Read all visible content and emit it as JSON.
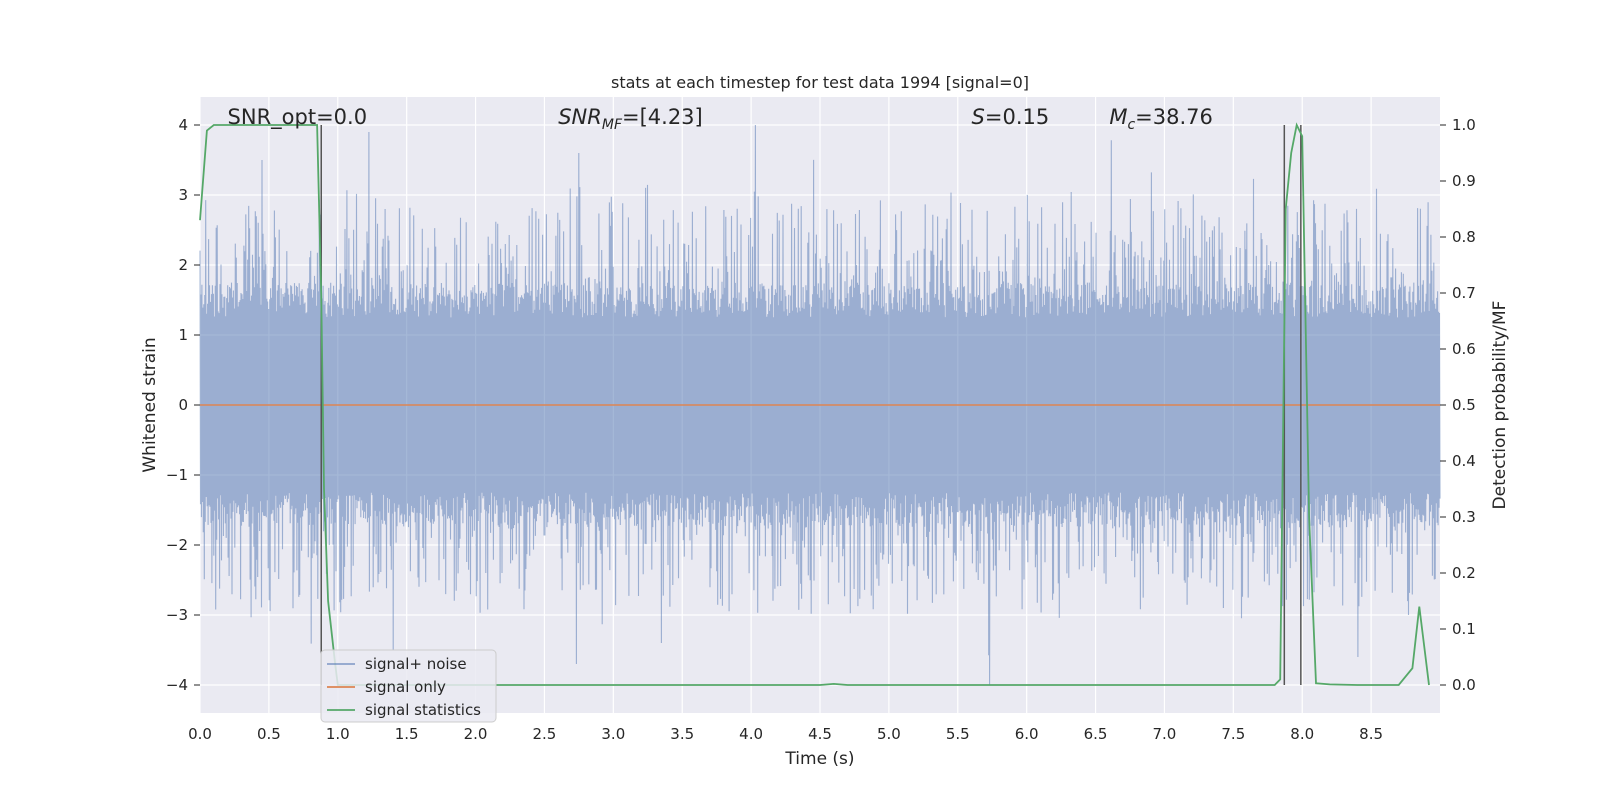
{
  "chart_data": {
    "type": "line",
    "title": "stats at each timestep for test data 1994 [signal=0]",
    "xlabel": "Time (s)",
    "ylabel": "Whitened strain",
    "y2label": "Detection probability/MF",
    "xlim": [
      0.0,
      9.0
    ],
    "ylim": [
      -4.4,
      4.4
    ],
    "y2lim": [
      -0.05,
      1.05
    ],
    "x_ticks": [
      0.0,
      0.5,
      1.0,
      1.5,
      2.0,
      2.5,
      3.0,
      3.5,
      4.0,
      4.5,
      5.0,
      5.5,
      6.0,
      6.5,
      7.0,
      7.5,
      8.0,
      8.5
    ],
    "x_tick_labels": [
      "0.0",
      "0.5",
      "1.0",
      "1.5",
      "2.0",
      "2.5",
      "3.0",
      "3.5",
      "4.0",
      "4.5",
      "5.0",
      "5.5",
      "6.0",
      "6.5",
      "7.0",
      "7.5",
      "8.0",
      "8.5"
    ],
    "y_ticks": [
      -4,
      -3,
      -2,
      -1,
      0,
      1,
      2,
      3,
      4
    ],
    "y_tick_labels": [
      "−4",
      "−3",
      "−2",
      "−1",
      "0",
      "1",
      "2",
      "3",
      "4"
    ],
    "y2_ticks": [
      0.0,
      0.1,
      0.2,
      0.3,
      0.4,
      0.5,
      0.6,
      0.7,
      0.8,
      0.9,
      1.0
    ],
    "y2_tick_labels": [
      "0.0",
      "0.1",
      "0.2",
      "0.3",
      "0.4",
      "0.5",
      "0.6",
      "0.7",
      "0.8",
      "0.9",
      "1.0"
    ],
    "grid": true,
    "legend_position": "lower-left",
    "annotations": [
      {
        "label": "SNR_opt=0.0",
        "x": 0.2
      },
      {
        "label": "SNR_MF=[4.23]",
        "x": 2.6
      },
      {
        "label": "S=0.15",
        "x": 5.6
      },
      {
        "label": "M_c=38.76",
        "x": 6.6
      }
    ],
    "colors": {
      "plot_bg": "#eaeaf2",
      "grid": "#ffffff",
      "signal_noise": "#4c72b0",
      "signal_only": "#dd8452",
      "signal_statistics": "#55a868",
      "vlines": "#555555"
    },
    "series": [
      {
        "name": "signal+ noise",
        "axis": "left",
        "style": "dense noise trace",
        "envelope_core": [
          -1.6,
          1.6
        ],
        "peaks": [
          {
            "x": 0.45,
            "y": 3.5
          },
          {
            "x": 1.23,
            "y": 3.9
          },
          {
            "x": 2.75,
            "y": 3.6
          },
          {
            "x": 4.03,
            "y": 4.0
          },
          {
            "x": 1.4,
            "y": -3.5
          },
          {
            "x": 2.73,
            "y": -3.7
          },
          {
            "x": 3.35,
            "y": -3.4
          },
          {
            "x": 5.73,
            "y": -4.0
          },
          {
            "x": 8.4,
            "y": -3.6
          }
        ]
      },
      {
        "name": "signal only",
        "axis": "left",
        "x": [
          0.0,
          9.0
        ],
        "y": [
          0.0,
          0.0
        ]
      },
      {
        "name": "signal statistics",
        "axis": "right",
        "x": [
          0.0,
          0.05,
          0.1,
          0.2,
          0.5,
          0.85,
          0.88,
          0.9,
          0.93,
          0.98,
          1.0,
          4.5,
          4.6,
          4.7,
          7.8,
          7.84,
          7.88,
          7.92,
          7.96,
          8.0,
          8.05,
          8.1,
          8.2,
          8.4,
          8.7,
          8.8,
          8.85,
          8.92
        ],
        "y": [
          0.83,
          0.99,
          1.0,
          1.0,
          1.0,
          1.0,
          0.7,
          0.35,
          0.15,
          0.04,
          0.0,
          0.0,
          0.002,
          0.0,
          0.0,
          0.01,
          0.85,
          0.95,
          1.0,
          0.98,
          0.3,
          0.003,
          0.001,
          0.0,
          0.0,
          0.03,
          0.14,
          0.0
        ]
      }
    ],
    "vlines": [
      0.88,
      7.87,
      7.99
    ]
  }
}
